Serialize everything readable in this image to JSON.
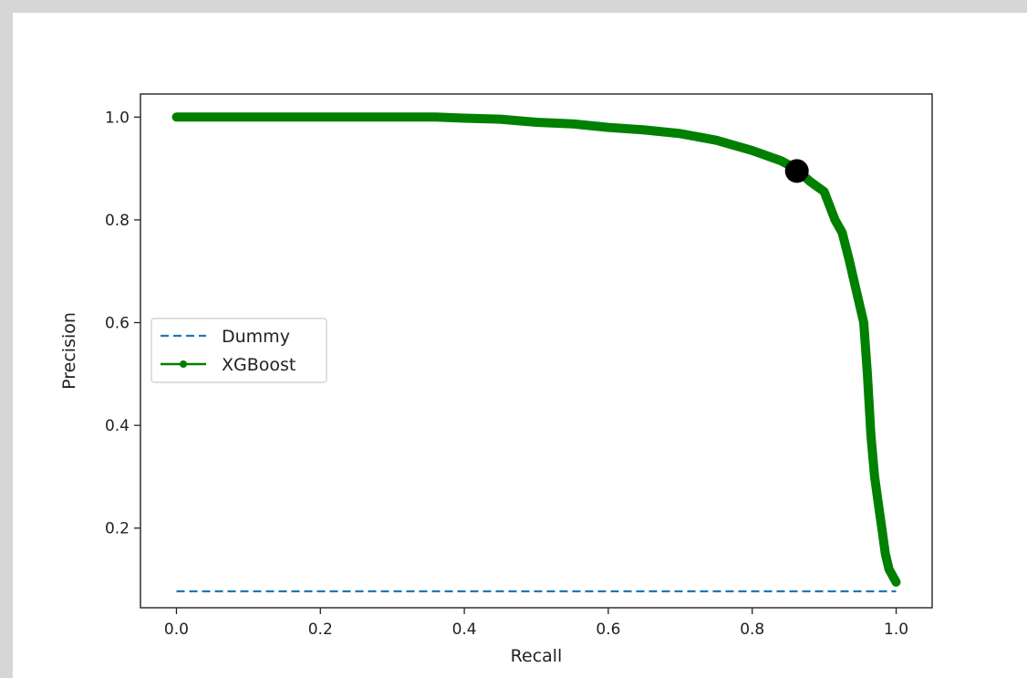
{
  "chart_data": {
    "type": "line",
    "title": "",
    "xlabel": "Recall",
    "ylabel": "Precision",
    "xlim": [
      -0.05,
      1.05
    ],
    "ylim": [
      0.045,
      1.045
    ],
    "xticks": [
      0.0,
      0.2,
      0.4,
      0.6,
      0.8,
      1.0
    ],
    "yticks": [
      0.2,
      0.4,
      0.6,
      0.8,
      1.0
    ],
    "xtick_labels": [
      "0.0",
      "0.2",
      "0.4",
      "0.6",
      "0.8",
      "1.0"
    ],
    "ytick_labels": [
      "0.2",
      "0.4",
      "0.6",
      "0.8",
      "1.0"
    ],
    "grid": false,
    "legend": {
      "placement": "center-left",
      "entries": [
        "Dummy",
        "XGBoost"
      ]
    },
    "series": [
      {
        "name": "Dummy",
        "style": "dashed",
        "color": "#1f77b4",
        "x": [
          0.0,
          1.0
        ],
        "y": [
          0.077,
          0.077
        ]
      },
      {
        "name": "XGBoost",
        "style": "solid-marker",
        "color": "#008000",
        "x": [
          0.0,
          0.05,
          0.1,
          0.2,
          0.3,
          0.36,
          0.4,
          0.45,
          0.5,
          0.55,
          0.6,
          0.65,
          0.7,
          0.75,
          0.8,
          0.84,
          0.86,
          0.88,
          0.9,
          0.915,
          0.925,
          0.935,
          0.945,
          0.955,
          0.96,
          0.965,
          0.97,
          0.975,
          0.98,
          0.985,
          0.99,
          1.0
        ],
        "y": [
          1.0,
          1.0,
          1.0,
          1.0,
          1.0,
          1.0,
          0.998,
          0.996,
          0.99,
          0.987,
          0.98,
          0.975,
          0.968,
          0.955,
          0.935,
          0.915,
          0.9,
          0.875,
          0.855,
          0.8,
          0.775,
          0.72,
          0.66,
          0.6,
          0.5,
          0.38,
          0.3,
          0.25,
          0.2,
          0.15,
          0.12,
          0.095
        ]
      }
    ],
    "highlight_point": {
      "x": 0.862,
      "y": 0.895,
      "color": "#000000"
    }
  }
}
